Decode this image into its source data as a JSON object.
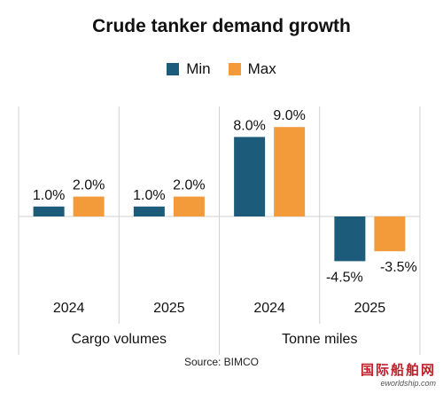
{
  "chart_data": {
    "type": "bar",
    "title": "Crude tanker demand growth",
    "categories": [
      "2024",
      "2025",
      "2024",
      "2025"
    ],
    "groups": [
      {
        "label": "Cargo volumes",
        "categories": [
          "2024",
          "2025"
        ]
      },
      {
        "label": "Tonne miles",
        "categories": [
          "2024",
          "2025"
        ]
      }
    ],
    "series": [
      {
        "name": "Min",
        "color": "#1d5b7a",
        "values": [
          1.0,
          1.0,
          8.0,
          -4.5
        ],
        "labels": [
          "1.0%",
          "1.0%",
          "8.0%",
          "-4.5%"
        ]
      },
      {
        "name": "Max",
        "color": "#f39a3a",
        "values": [
          2.0,
          2.0,
          9.0,
          -3.5
        ],
        "labels": [
          "2.0%",
          "2.0%",
          "9.0%",
          "-3.5%"
        ]
      }
    ],
    "ylim": [
      -6,
      10
    ],
    "legend_position": "top"
  },
  "source": "Source: BIMCO",
  "watermark": {
    "line1": "国际船舶网",
    "line2": "eworldship.com"
  }
}
